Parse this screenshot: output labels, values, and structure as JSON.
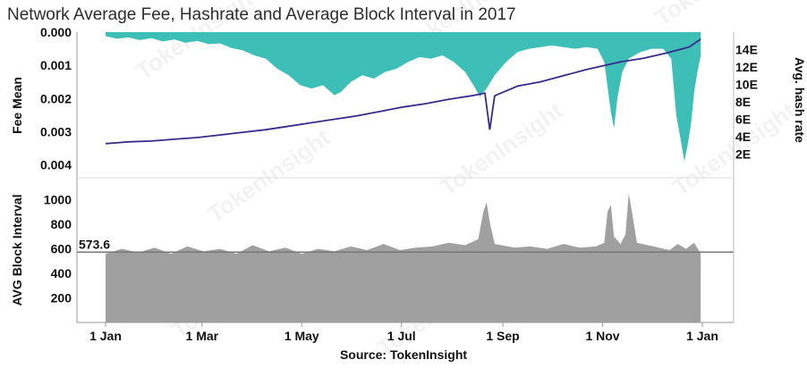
{
  "chart_data": [
    {
      "type": "area",
      "panel": "top",
      "title": "Network Average Fee, Hashrate and Average Block Interval in 2017",
      "ylabel": "Fee Mean",
      "y2label": "Avg. hash rate",
      "y_ticks": [
        "0.000",
        "0.001",
        "0.002",
        "0.003",
        "0.004"
      ],
      "ylim": [
        0,
        0.0042
      ],
      "y_inverted": true,
      "y2_ticks": [
        "2E",
        "4E",
        "6E",
        "8E",
        "10E",
        "12E",
        "14E"
      ],
      "y2lim": [
        0,
        16
      ],
      "series": [
        {
          "name": "Fee Mean",
          "color": "#3dbfb8",
          "points": [
            [
              0,
              0.00012
            ],
            [
              7,
              0.0002
            ],
            [
              14,
              0.00016
            ],
            [
              21,
              0.00024
            ],
            [
              28,
              0.00018
            ],
            [
              35,
              0.00028
            ],
            [
              42,
              0.00022
            ],
            [
              49,
              0.00032
            ],
            [
              56,
              0.00026
            ],
            [
              63,
              0.00036
            ],
            [
              70,
              0.00034
            ],
            [
              77,
              0.00048
            ],
            [
              84,
              0.00055
            ],
            [
              91,
              0.0007
            ],
            [
              98,
              0.0008
            ],
            [
              105,
              0.0011
            ],
            [
              112,
              0.0013
            ],
            [
              119,
              0.0016
            ],
            [
              126,
              0.0017
            ],
            [
              133,
              0.0016
            ],
            [
              140,
              0.0019
            ],
            [
              144,
              0.0018
            ],
            [
              150,
              0.0015
            ],
            [
              157,
              0.0013
            ],
            [
              164,
              0.0014
            ],
            [
              171,
              0.0012
            ],
            [
              178,
              0.0011
            ],
            [
              185,
              0.0009
            ],
            [
              192,
              0.00075
            ],
            [
              199,
              0.0008
            ],
            [
              206,
              0.0007
            ],
            [
              213,
              0.0009
            ],
            [
              220,
              0.0012
            ],
            [
              225,
              0.0016
            ],
            [
              229,
              0.00195
            ],
            [
              233,
              0.0017
            ],
            [
              238,
              0.0013
            ],
            [
              245,
              0.0009
            ],
            [
              252,
              0.0006
            ],
            [
              259,
              0.0005
            ],
            [
              266,
              0.00045
            ],
            [
              273,
              0.0004
            ],
            [
              280,
              0.00045
            ],
            [
              287,
              0.0005
            ],
            [
              294,
              0.00045
            ],
            [
              301,
              0.0005
            ],
            [
              305,
              0.0009
            ],
            [
              309,
              0.0024
            ],
            [
              311,
              0.0029
            ],
            [
              313,
              0.002
            ],
            [
              316,
              0.0012
            ],
            [
              320,
              0.0008
            ],
            [
              327,
              0.0006
            ],
            [
              334,
              0.0005
            ],
            [
              341,
              0.0005
            ],
            [
              346,
              0.0008
            ],
            [
              349,
              0.0025
            ],
            [
              352,
              0.0033
            ],
            [
              354,
              0.0039
            ],
            [
              356,
              0.0034
            ],
            [
              358,
              0.0028
            ],
            [
              360,
              0.0018
            ],
            [
              362,
              0.0012
            ],
            [
              364,
              0.0007
            ]
          ]
        },
        {
          "name": "Avg. hash rate",
          "color": "#3a2a8c",
          "axis": "right",
          "points": [
            [
              0,
              3.2
            ],
            [
              14,
              3.4
            ],
            [
              28,
              3.5
            ],
            [
              42,
              3.7
            ],
            [
              56,
              3.9
            ],
            [
              70,
              4.2
            ],
            [
              84,
              4.5
            ],
            [
              98,
              4.8
            ],
            [
              112,
              5.2
            ],
            [
              126,
              5.6
            ],
            [
              140,
              6.0
            ],
            [
              154,
              6.4
            ],
            [
              168,
              6.9
            ],
            [
              182,
              7.4
            ],
            [
              196,
              7.8
            ],
            [
              210,
              8.3
            ],
            [
              224,
              8.7
            ],
            [
              232,
              9.0
            ],
            [
              235,
              4.8
            ],
            [
              238,
              8.7
            ],
            [
              252,
              9.8
            ],
            [
              266,
              10.3
            ],
            [
              280,
              11.0
            ],
            [
              294,
              11.7
            ],
            [
              301,
              12.0
            ],
            [
              315,
              12.6
            ],
            [
              329,
              13.0
            ],
            [
              343,
              13.6
            ],
            [
              357,
              14.3
            ],
            [
              364,
              15.2
            ]
          ]
        }
      ]
    },
    {
      "type": "area",
      "panel": "bottom",
      "ylabel": "AVG Block Interval",
      "y_ticks": [
        "200",
        "400",
        "600",
        "800",
        "1000"
      ],
      "ylim": [
        0,
        1100
      ],
      "reference_line": {
        "value": 573.6,
        "label": "573.6"
      },
      "x_ticks": [
        "1 Jan",
        "1 Mar",
        "1 May",
        "1 Jul",
        "1 Sep",
        "1 Nov",
        "1 Jan"
      ],
      "x_tick_days": [
        0,
        59,
        120,
        181,
        243,
        304,
        365
      ],
      "xlim": [
        0,
        365
      ],
      "series": [
        {
          "name": "AVG Block Interval",
          "color": "#a0a0a0",
          "points": [
            [
              0,
              560
            ],
            [
              10,
              600
            ],
            [
              20,
              570
            ],
            [
              30,
              610
            ],
            [
              40,
              560
            ],
            [
              50,
              620
            ],
            [
              60,
              580
            ],
            [
              70,
              600
            ],
            [
              80,
              560
            ],
            [
              90,
              630
            ],
            [
              100,
              580
            ],
            [
              110,
              610
            ],
            [
              120,
              560
            ],
            [
              130,
              600
            ],
            [
              140,
              580
            ],
            [
              150,
              620
            ],
            [
              160,
              590
            ],
            [
              170,
              640
            ],
            [
              180,
              590
            ],
            [
              190,
              610
            ],
            [
              200,
              620
            ],
            [
              210,
              650
            ],
            [
              220,
              630
            ],
            [
              228,
              680
            ],
            [
              231,
              900
            ],
            [
              233,
              980
            ],
            [
              235,
              820
            ],
            [
              238,
              640
            ],
            [
              250,
              610
            ],
            [
              260,
              620
            ],
            [
              270,
              600
            ],
            [
              280,
              640
            ],
            [
              290,
              610
            ],
            [
              300,
              620
            ],
            [
              305,
              650
            ],
            [
              307,
              900
            ],
            [
              309,
              960
            ],
            [
              311,
              700
            ],
            [
              315,
              640
            ],
            [
              318,
              720
            ],
            [
              320,
              1050
            ],
            [
              322,
              900
            ],
            [
              325,
              650
            ],
            [
              335,
              620
            ],
            [
              345,
              590
            ],
            [
              350,
              640
            ],
            [
              355,
              600
            ],
            [
              360,
              650
            ],
            [
              364,
              560
            ]
          ]
        }
      ]
    }
  ],
  "source_text": "Source: TokenInsight",
  "watermark": "TokenInsight"
}
